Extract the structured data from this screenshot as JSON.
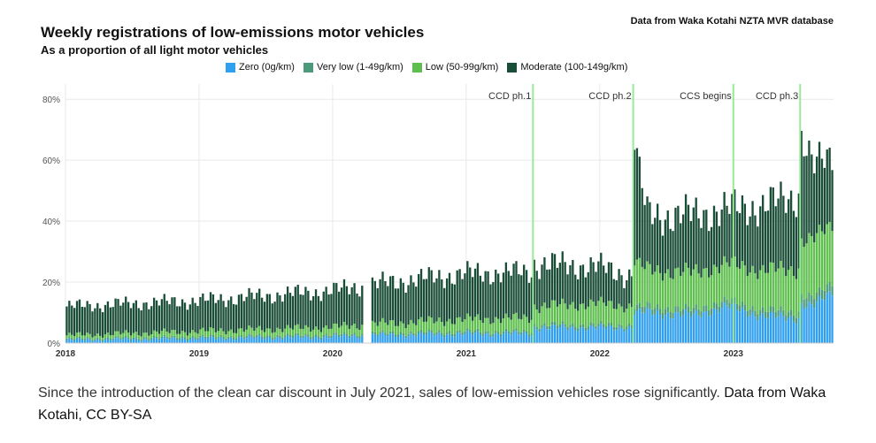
{
  "header": {
    "title": "Weekly registrations of low-emissions motor vehicles",
    "subtitle": "As a proportion of all light motor vehicles",
    "source": "Data from Waka Kotahi NZTA MVR database"
  },
  "caption": {
    "text": "Since the introduction of the clean car discount in July 2021, sales of low-emission vehicles rose significantly.",
    "credit": "Data from Waka Kotahi, CC BY-SA"
  },
  "colors": {
    "zero": "#2f9ff0",
    "very_low": "#4c9a7a",
    "low": "#5fbf4e",
    "moderate": "#1a4d38",
    "event_line": "#9be89b",
    "grid": "#e9e9e9"
  },
  "chart_data": {
    "type": "bar",
    "stacked": true,
    "frequency": "weekly",
    "title": "Weekly registrations of low-emissions motor vehicles",
    "subtitle": "As a proportion of all light motor vehicles",
    "xlabel": "",
    "ylabel": "",
    "ylim": [
      0,
      0.85
    ],
    "yticks": [
      0,
      0.2,
      0.4,
      0.6,
      0.8
    ],
    "ytick_labels": [
      "0%",
      "20%",
      "40%",
      "60%",
      "80%"
    ],
    "xlim": [
      2018.0,
      2023.75
    ],
    "xticks": [
      2018,
      2019,
      2020,
      2021,
      2022,
      2023
    ],
    "xtick_labels": [
      "2018",
      "2019",
      "2020",
      "2021",
      "2022",
      "2023"
    ],
    "legend": {
      "position": "top",
      "entries": [
        "Zero (0g/km)",
        "Very low (1-49g/km)",
        "Low (50-99g/km)",
        "Moderate (100-149g/km)"
      ]
    },
    "series_keys": [
      "zero",
      "very_low",
      "low",
      "moderate"
    ],
    "events": [
      {
        "label": "CCD ph.1",
        "x": 2021.5
      },
      {
        "label": "CCD ph.2",
        "x": 2022.25
      },
      {
        "label": "CCS begins",
        "x": 2023.0
      },
      {
        "label": "CCD ph.3",
        "x": 2023.5
      }
    ],
    "gaps": [
      [
        2020.23,
        2020.28
      ]
    ],
    "trend_knots": [
      {
        "x": 2018.0,
        "zero": 0.01,
        "very_low": 0.005,
        "low": 0.01,
        "moderate": 0.095,
        "amp": 0.01
      },
      {
        "x": 2019.0,
        "zero": 0.015,
        "very_low": 0.006,
        "low": 0.018,
        "moderate": 0.1,
        "amp": 0.012
      },
      {
        "x": 2020.0,
        "zero": 0.02,
        "very_low": 0.007,
        "low": 0.025,
        "moderate": 0.12,
        "amp": 0.014
      },
      {
        "x": 2020.3,
        "zero": 0.025,
        "very_low": 0.007,
        "low": 0.03,
        "moderate": 0.13,
        "amp": 0.016
      },
      {
        "x": 2021.0,
        "zero": 0.03,
        "very_low": 0.008,
        "low": 0.04,
        "moderate": 0.15,
        "amp": 0.018
      },
      {
        "x": 2021.49,
        "zero": 0.03,
        "very_low": 0.008,
        "low": 0.045,
        "moderate": 0.15,
        "amp": 0.018
      },
      {
        "x": 2021.5,
        "zero": 0.05,
        "very_low": 0.01,
        "low": 0.06,
        "moderate": 0.14,
        "amp": 0.022
      },
      {
        "x": 2022.0,
        "zero": 0.05,
        "very_low": 0.01,
        "low": 0.07,
        "moderate": 0.12,
        "amp": 0.02
      },
      {
        "x": 2022.24,
        "zero": 0.05,
        "very_low": 0.01,
        "low": 0.06,
        "moderate": 0.1,
        "amp": 0.02
      },
      {
        "x": 2022.26,
        "zero": 0.1,
        "very_low": 0.02,
        "low": 0.15,
        "moderate": 0.4,
        "amp": 0.02
      },
      {
        "x": 2022.35,
        "zero": 0.1,
        "very_low": 0.02,
        "low": 0.12,
        "moderate": 0.18,
        "amp": 0.03
      },
      {
        "x": 2022.7,
        "zero": 0.09,
        "very_low": 0.02,
        "low": 0.12,
        "moderate": 0.19,
        "amp": 0.03
      },
      {
        "x": 2022.95,
        "zero": 0.12,
        "very_low": 0.02,
        "low": 0.12,
        "moderate": 0.18,
        "amp": 0.03
      },
      {
        "x": 2023.2,
        "zero": 0.09,
        "very_low": 0.02,
        "low": 0.13,
        "moderate": 0.21,
        "amp": 0.03
      },
      {
        "x": 2023.49,
        "zero": 0.08,
        "very_low": 0.02,
        "low": 0.14,
        "moderate": 0.24,
        "amp": 0.03
      },
      {
        "x": 2023.5,
        "zero": 0.13,
        "very_low": 0.03,
        "low": 0.18,
        "moderate": 0.36,
        "amp": 0.03
      },
      {
        "x": 2023.6,
        "zero": 0.12,
        "very_low": 0.03,
        "low": 0.19,
        "moderate": 0.24,
        "amp": 0.03
      },
      {
        "x": 2023.75,
        "zero": 0.17,
        "very_low": 0.03,
        "low": 0.19,
        "moderate": 0.22,
        "amp": 0.03
      }
    ]
  }
}
